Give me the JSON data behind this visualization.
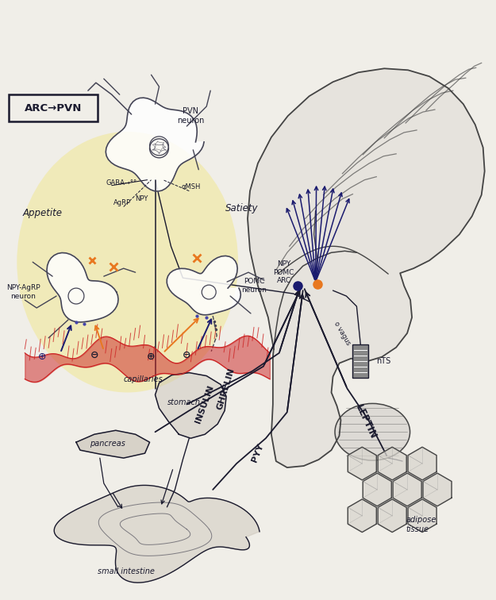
{
  "bg_color": "#e8e8e8",
  "figsize": [
    6.25,
    7.56
  ],
  "dpi": 100,
  "arc_pvn_label": "ARC→PVN",
  "labels": {
    "pvn_neuron": "PVN\nneuron",
    "gaba": "GABA→°°",
    "agrp": "AgRP",
    "npy_label": "NPY",
    "alpha_msh": "αMSH",
    "appetite": "Appetite",
    "satiety": "Satiety",
    "npy_agrp_neuron": "NPY-AgRP\nneuron",
    "pomc_neuron": "POMC\nneuron",
    "capillaries": "capillaries",
    "pancreas": "pancreas",
    "stomach": "stomach",
    "small_intestine": "small intestine",
    "npy_pomc_arc": "NPY\nPOMC\nARC",
    "nts": "nTS",
    "vagus": "o vagus",
    "leptin_label": "LEPTIN",
    "insulin_label": "INSULIN",
    "ghrelin_label": "GHRELIN",
    "pyy_label": "PYY",
    "adipose": "adipose\ntissue"
  },
  "colors": {
    "sketch": "#1a1a2e",
    "sketch_light": "#555566",
    "capillary_red": "#cc2222",
    "yellow_bg": "#f0e8a0",
    "blue_arrow": "#1a1a6e",
    "orange_dot": "#e87820",
    "neuron_outline": "#444455",
    "brain_fill": "#e0ddd8",
    "brain_line": "#444444"
  }
}
